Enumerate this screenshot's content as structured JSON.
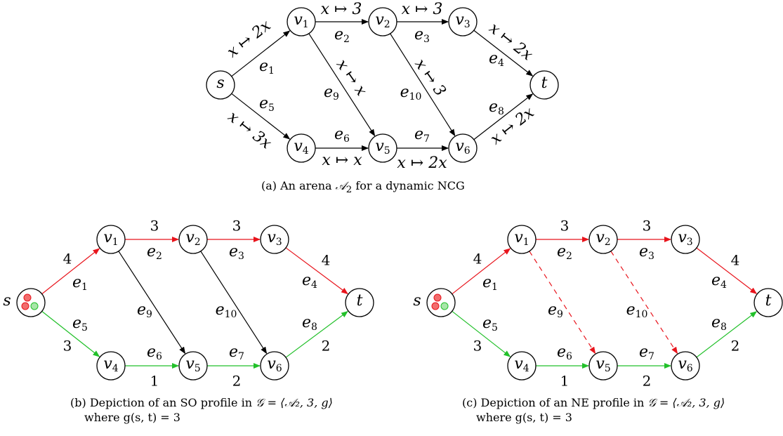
{
  "nodes": [
    {
      "id": "s",
      "label": "s",
      "sub": ""
    },
    {
      "id": "v1",
      "label": "v",
      "sub": "1"
    },
    {
      "id": "v2",
      "label": "v",
      "sub": "2"
    },
    {
      "id": "v3",
      "label": "v",
      "sub": "3"
    },
    {
      "id": "v4",
      "label": "v",
      "sub": "4"
    },
    {
      "id": "v5",
      "label": "v",
      "sub": "5"
    },
    {
      "id": "v6",
      "label": "v",
      "sub": "6"
    },
    {
      "id": "t",
      "label": "t",
      "sub": ""
    }
  ],
  "edges": [
    {
      "id": "e1",
      "from": "s",
      "to": "v1",
      "label": "e",
      "sub": "1",
      "cost": "x ↦ 2x"
    },
    {
      "id": "e2",
      "from": "v1",
      "to": "v2",
      "label": "e",
      "sub": "2",
      "cost": "x ↦ 3"
    },
    {
      "id": "e3",
      "from": "v2",
      "to": "v3",
      "label": "e",
      "sub": "3",
      "cost": "x ↦ 3"
    },
    {
      "id": "e4",
      "from": "v3",
      "to": "t",
      "label": "e",
      "sub": "4",
      "cost": "x ↦ 2x"
    },
    {
      "id": "e5",
      "from": "s",
      "to": "v4",
      "label": "e",
      "sub": "5",
      "cost": "x ↦ 3x"
    },
    {
      "id": "e6",
      "from": "v4",
      "to": "v5",
      "label": "e",
      "sub": "6",
      "cost": "x ↦ x"
    },
    {
      "id": "e7",
      "from": "v5",
      "to": "v6",
      "label": "e",
      "sub": "7",
      "cost": "x ↦ 2x"
    },
    {
      "id": "e8",
      "from": "v6",
      "to": "t",
      "label": "e",
      "sub": "8",
      "cost": "x ↦ 2x"
    },
    {
      "id": "e9",
      "from": "v1",
      "to": "v5",
      "label": "e",
      "sub": "9",
      "cost": "x ↦ x"
    },
    {
      "id": "e10",
      "from": "v2",
      "to": "v6",
      "label": "e",
      "sub": "10",
      "cost": "x ↦ 3"
    }
  ],
  "panel_b": {
    "edges": {
      "e1": {
        "color": "#e8141c",
        "style": "solid",
        "value": "4"
      },
      "e2": {
        "color": "#e8141c",
        "style": "solid",
        "value": "3"
      },
      "e3": {
        "color": "#e8141c",
        "style": "solid",
        "value": "3"
      },
      "e4": {
        "color": "#e8141c",
        "style": "solid",
        "value": "4"
      },
      "e5": {
        "color": "#22c02a",
        "style": "solid",
        "value": "3"
      },
      "e6": {
        "color": "#22c02a",
        "style": "solid",
        "value": ""
      },
      "e7": {
        "color": "#22c02a",
        "style": "solid",
        "value": "2"
      },
      "e8": {
        "color": "#22c02a",
        "style": "solid",
        "value": "2"
      },
      "e9": {
        "color": "#000000",
        "style": "solid",
        "value": ""
      },
      "e10": {
        "color": "#000000",
        "style": "solid",
        "value": ""
      }
    },
    "extra_value": "1"
  },
  "panel_c": {
    "edges": {
      "e1": {
        "color": "#e8141c",
        "style": "solid",
        "value": "4"
      },
      "e2": {
        "color": "#e8141c",
        "style": "solid",
        "value": "3"
      },
      "e3": {
        "color": "#e8141c",
        "style": "solid",
        "value": "3"
      },
      "e4": {
        "color": "#e8141c",
        "style": "solid",
        "value": "4"
      },
      "e5": {
        "color": "#22c02a",
        "style": "solid",
        "value": "3"
      },
      "e6": {
        "color": "#22c02a",
        "style": "solid",
        "value": ""
      },
      "e7": {
        "color": "#22c02a",
        "style": "solid",
        "value": "2"
      },
      "e8": {
        "color": "#22c02a",
        "style": "solid",
        "value": "2"
      },
      "e9": {
        "color": "#e8141c",
        "style": "dashed",
        "value": ""
      },
      "e10": {
        "color": "#e8141c",
        "style": "dashed",
        "value": ""
      }
    },
    "extra_value": "1"
  },
  "tokens": {
    "red": "#f26d6d",
    "green": "#a9e6a9"
  },
  "captions": {
    "a_prefix": "(a) An arena ",
    "a_symbol": "𝒜",
    "a_sub": "2",
    "a_suffix": " for a dynamic NCG",
    "b_line1_prefix": "(b) Depiction of an SO profile in ",
    "b_line1_math": "𝒢 = ⟨𝒜₂, 3, g⟩",
    "b_line2": "where g(s, t) = 3",
    "c_line1_prefix": "(c) Depiction of an NE profile in ",
    "c_line1_math": "𝒢 = ⟨𝒜₂, 3, g⟩",
    "c_line2": "where g(s, t) = 3"
  }
}
